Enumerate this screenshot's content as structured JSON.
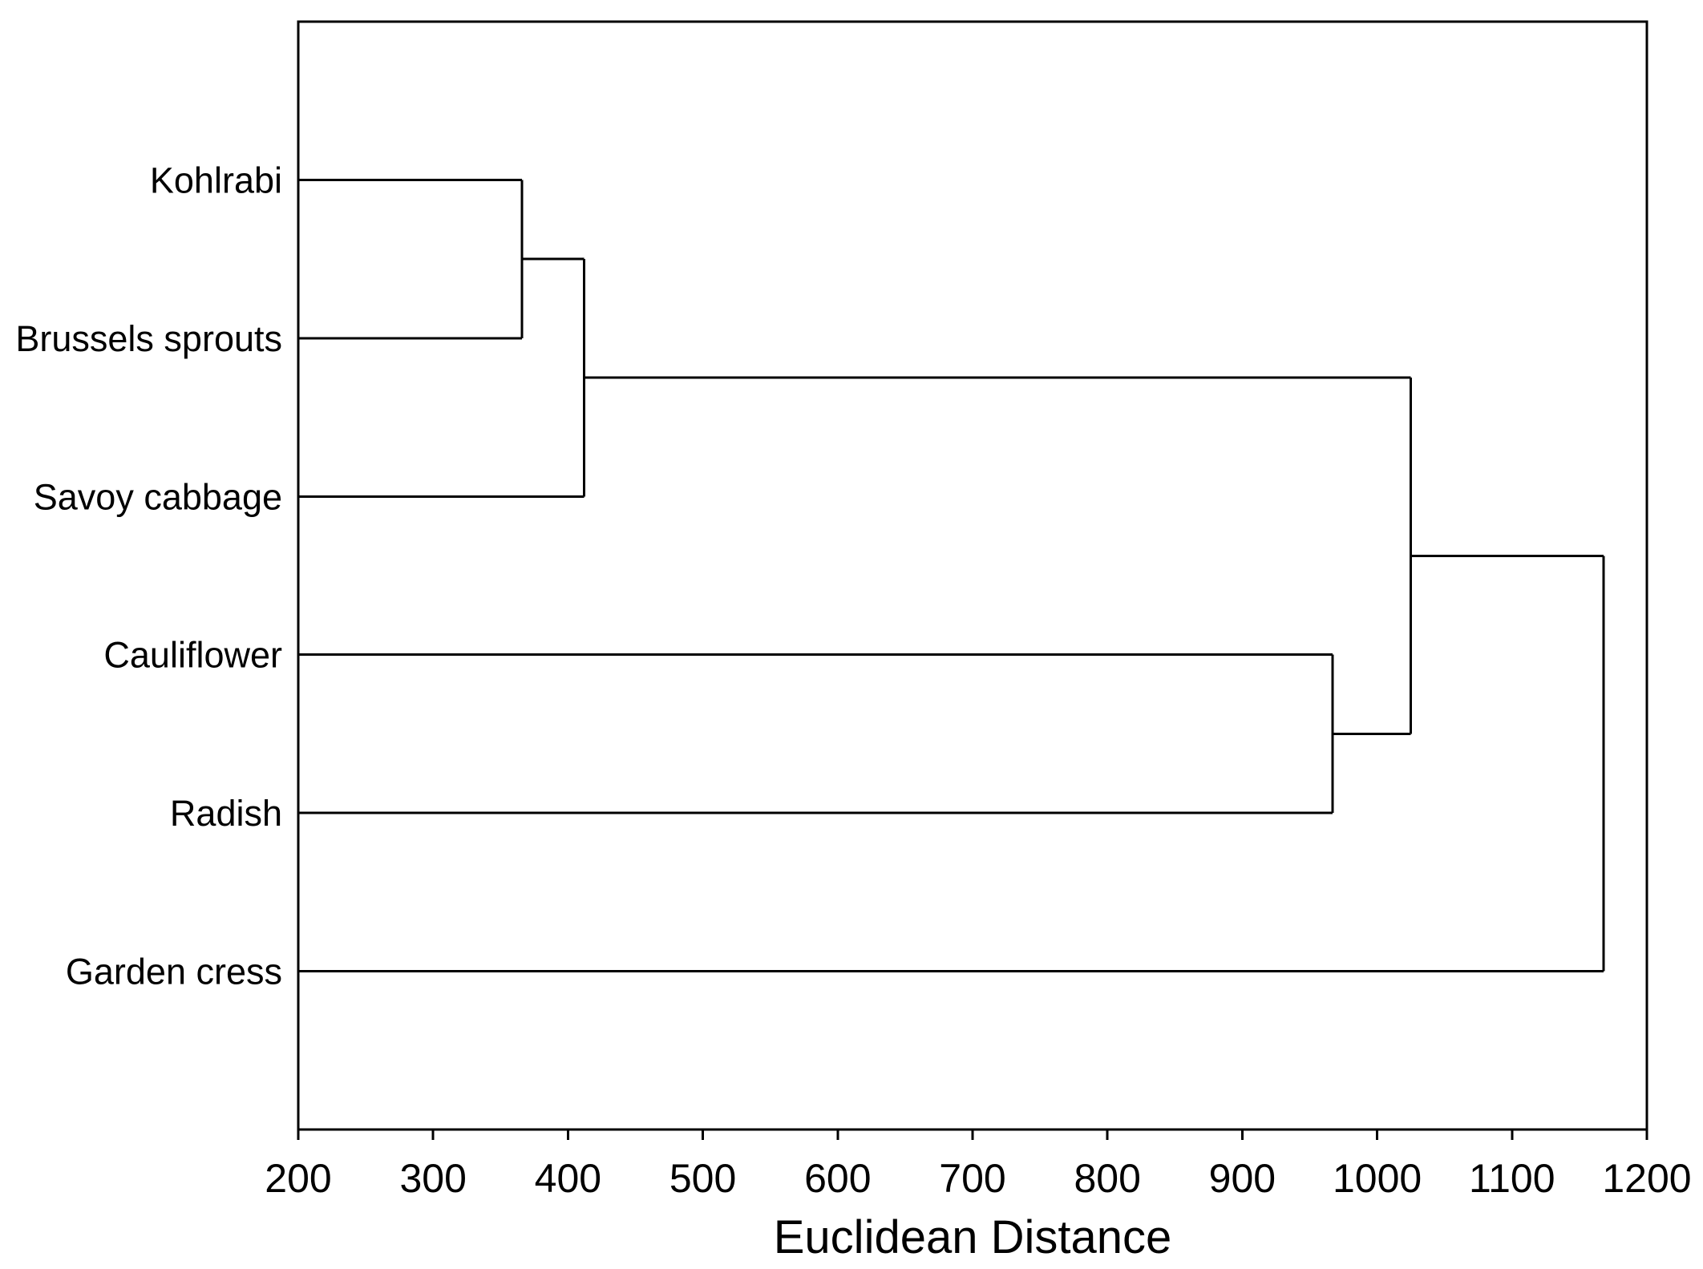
{
  "page": {
    "background_color": "#ffffff"
  },
  "chart_data": {
    "type": "dendrogram",
    "orientation": "horizontal",
    "xlabel": "Euclidean Distance",
    "xlim": [
      200,
      1200
    ],
    "xticks": [
      200,
      300,
      400,
      500,
      600,
      700,
      800,
      900,
      1000,
      1100,
      1200
    ],
    "grid": false,
    "line_color": "#000000",
    "background_color": "#ffffff",
    "leaves": [
      "Kohlrabi",
      "Brussels sprouts",
      "Savoy cabbage",
      "Cauliflower",
      "Radish",
      "Garden cress"
    ],
    "merges": [
      {
        "a": "Kohlrabi",
        "b": "Brussels sprouts",
        "distance": 366
      },
      {
        "a": "Kohlrabi+Brussels sprouts",
        "b": "Savoy cabbage",
        "distance": 412
      },
      {
        "a": "Cauliflower",
        "b": "Radish",
        "distance": 967
      },
      {
        "a": "Kohlrabi+Brussels sprouts+Savoy cabbage",
        "b": "Cauliflower+Radish",
        "distance": 1025
      },
      {
        "a": "Kohlrabi+Brussels sprouts+Savoy cabbage+Cauliflower+Radish",
        "b": "Garden cress",
        "distance": 1168
      }
    ]
  }
}
